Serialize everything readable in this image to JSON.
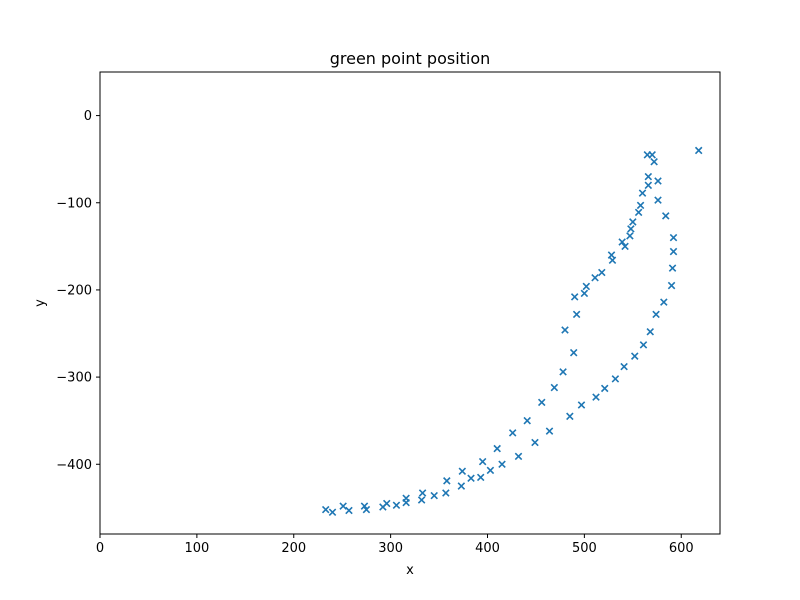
{
  "chart_data": {
    "type": "scatter",
    "title": "green point position",
    "xlabel": "x",
    "ylabel": "y",
    "xlim": [
      0,
      640
    ],
    "ylim": [
      -480,
      50
    ],
    "xticks": [
      0,
      100,
      200,
      300,
      400,
      500,
      600
    ],
    "yticks": [
      0,
      -100,
      -200,
      -300,
      -400
    ],
    "grid": false,
    "marker": "x",
    "color": "#1f77b4",
    "series": [
      {
        "name": "green point",
        "points": [
          [
            233,
            -452
          ],
          [
            240,
            -455
          ],
          [
            251,
            -448
          ],
          [
            257,
            -453
          ],
          [
            273,
            -448
          ],
          [
            275,
            -452
          ],
          [
            292,
            -449
          ],
          [
            296,
            -445
          ],
          [
            306,
            -447
          ],
          [
            316,
            -444
          ],
          [
            316,
            -439
          ],
          [
            332,
            -441
          ],
          [
            333,
            -433
          ],
          [
            345,
            -436
          ],
          [
            357,
            -433
          ],
          [
            358,
            -419
          ],
          [
            373,
            -425
          ],
          [
            374,
            -408
          ],
          [
            383,
            -416
          ],
          [
            393,
            -415
          ],
          [
            395,
            -397
          ],
          [
            403,
            -407
          ],
          [
            410,
            -382
          ],
          [
            415,
            -400
          ],
          [
            426,
            -364
          ],
          [
            432,
            -391
          ],
          [
            441,
            -350
          ],
          [
            449,
            -375
          ],
          [
            456,
            -329
          ],
          [
            464,
            -362
          ],
          [
            469,
            -312
          ],
          [
            478,
            -294
          ],
          [
            480,
            -246
          ],
          [
            485,
            -345
          ],
          [
            489,
            -272
          ],
          [
            490,
            -208
          ],
          [
            492,
            -228
          ],
          [
            497,
            -332
          ],
          [
            500,
            -204
          ],
          [
            502,
            -196
          ],
          [
            511,
            -186
          ],
          [
            512,
            -323
          ],
          [
            518,
            -180
          ],
          [
            521,
            -313
          ],
          [
            528,
            -160
          ],
          [
            529,
            -166
          ],
          [
            532,
            -302
          ],
          [
            539,
            -145
          ],
          [
            541,
            -288
          ],
          [
            542,
            -150
          ],
          [
            547,
            -138
          ],
          [
            548,
            -130
          ],
          [
            550,
            -122
          ],
          [
            552,
            -276
          ],
          [
            556,
            -111
          ],
          [
            558,
            -103
          ],
          [
            560,
            -89
          ],
          [
            561,
            -263
          ],
          [
            565,
            -45
          ],
          [
            566,
            -70
          ],
          [
            566,
            -80
          ],
          [
            568,
            -248
          ],
          [
            570,
            -45
          ],
          [
            572,
            -53
          ],
          [
            574,
            -228
          ],
          [
            576,
            -75
          ],
          [
            576,
            -97
          ],
          [
            582,
            -214
          ],
          [
            584,
            -115
          ],
          [
            590,
            -195
          ],
          [
            591,
            -175
          ],
          [
            592,
            -156
          ],
          [
            592,
            -140
          ],
          [
            618,
            -40
          ]
        ]
      }
    ]
  }
}
